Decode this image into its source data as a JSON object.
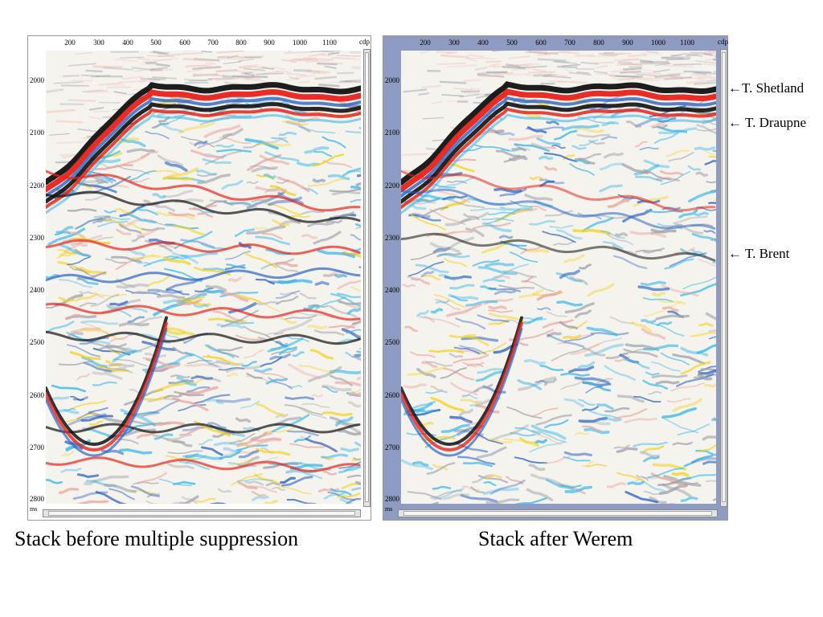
{
  "cdp_ticks": [
    "200",
    "300",
    "400",
    "500",
    "600",
    "700",
    "800",
    "900",
    "1000",
    "1100"
  ],
  "cdp_axis_label": "cdp",
  "time_ticks": [
    "2000",
    "2100",
    "2200",
    "2300",
    "2400",
    "2500",
    "2600",
    "2700",
    "2800"
  ],
  "time_unit": "ms",
  "panels": [
    {
      "caption": "Stack before multiple suppression"
    },
    {
      "caption": "Stack after Werem"
    }
  ],
  "horizons": [
    {
      "label": "←T. Shetland"
    },
    {
      "label": "← T. Draupne"
    },
    {
      "label": "← T. Brent"
    }
  ],
  "colors": {
    "trough_black": "#111111",
    "peak_red": "#e8221a",
    "blue": "#2a63c4",
    "cyan": "#38b7ea",
    "yellow": "#f4d21f",
    "gray": "#9fa3aa",
    "right_panel_bg": "#8e9bc2"
  }
}
